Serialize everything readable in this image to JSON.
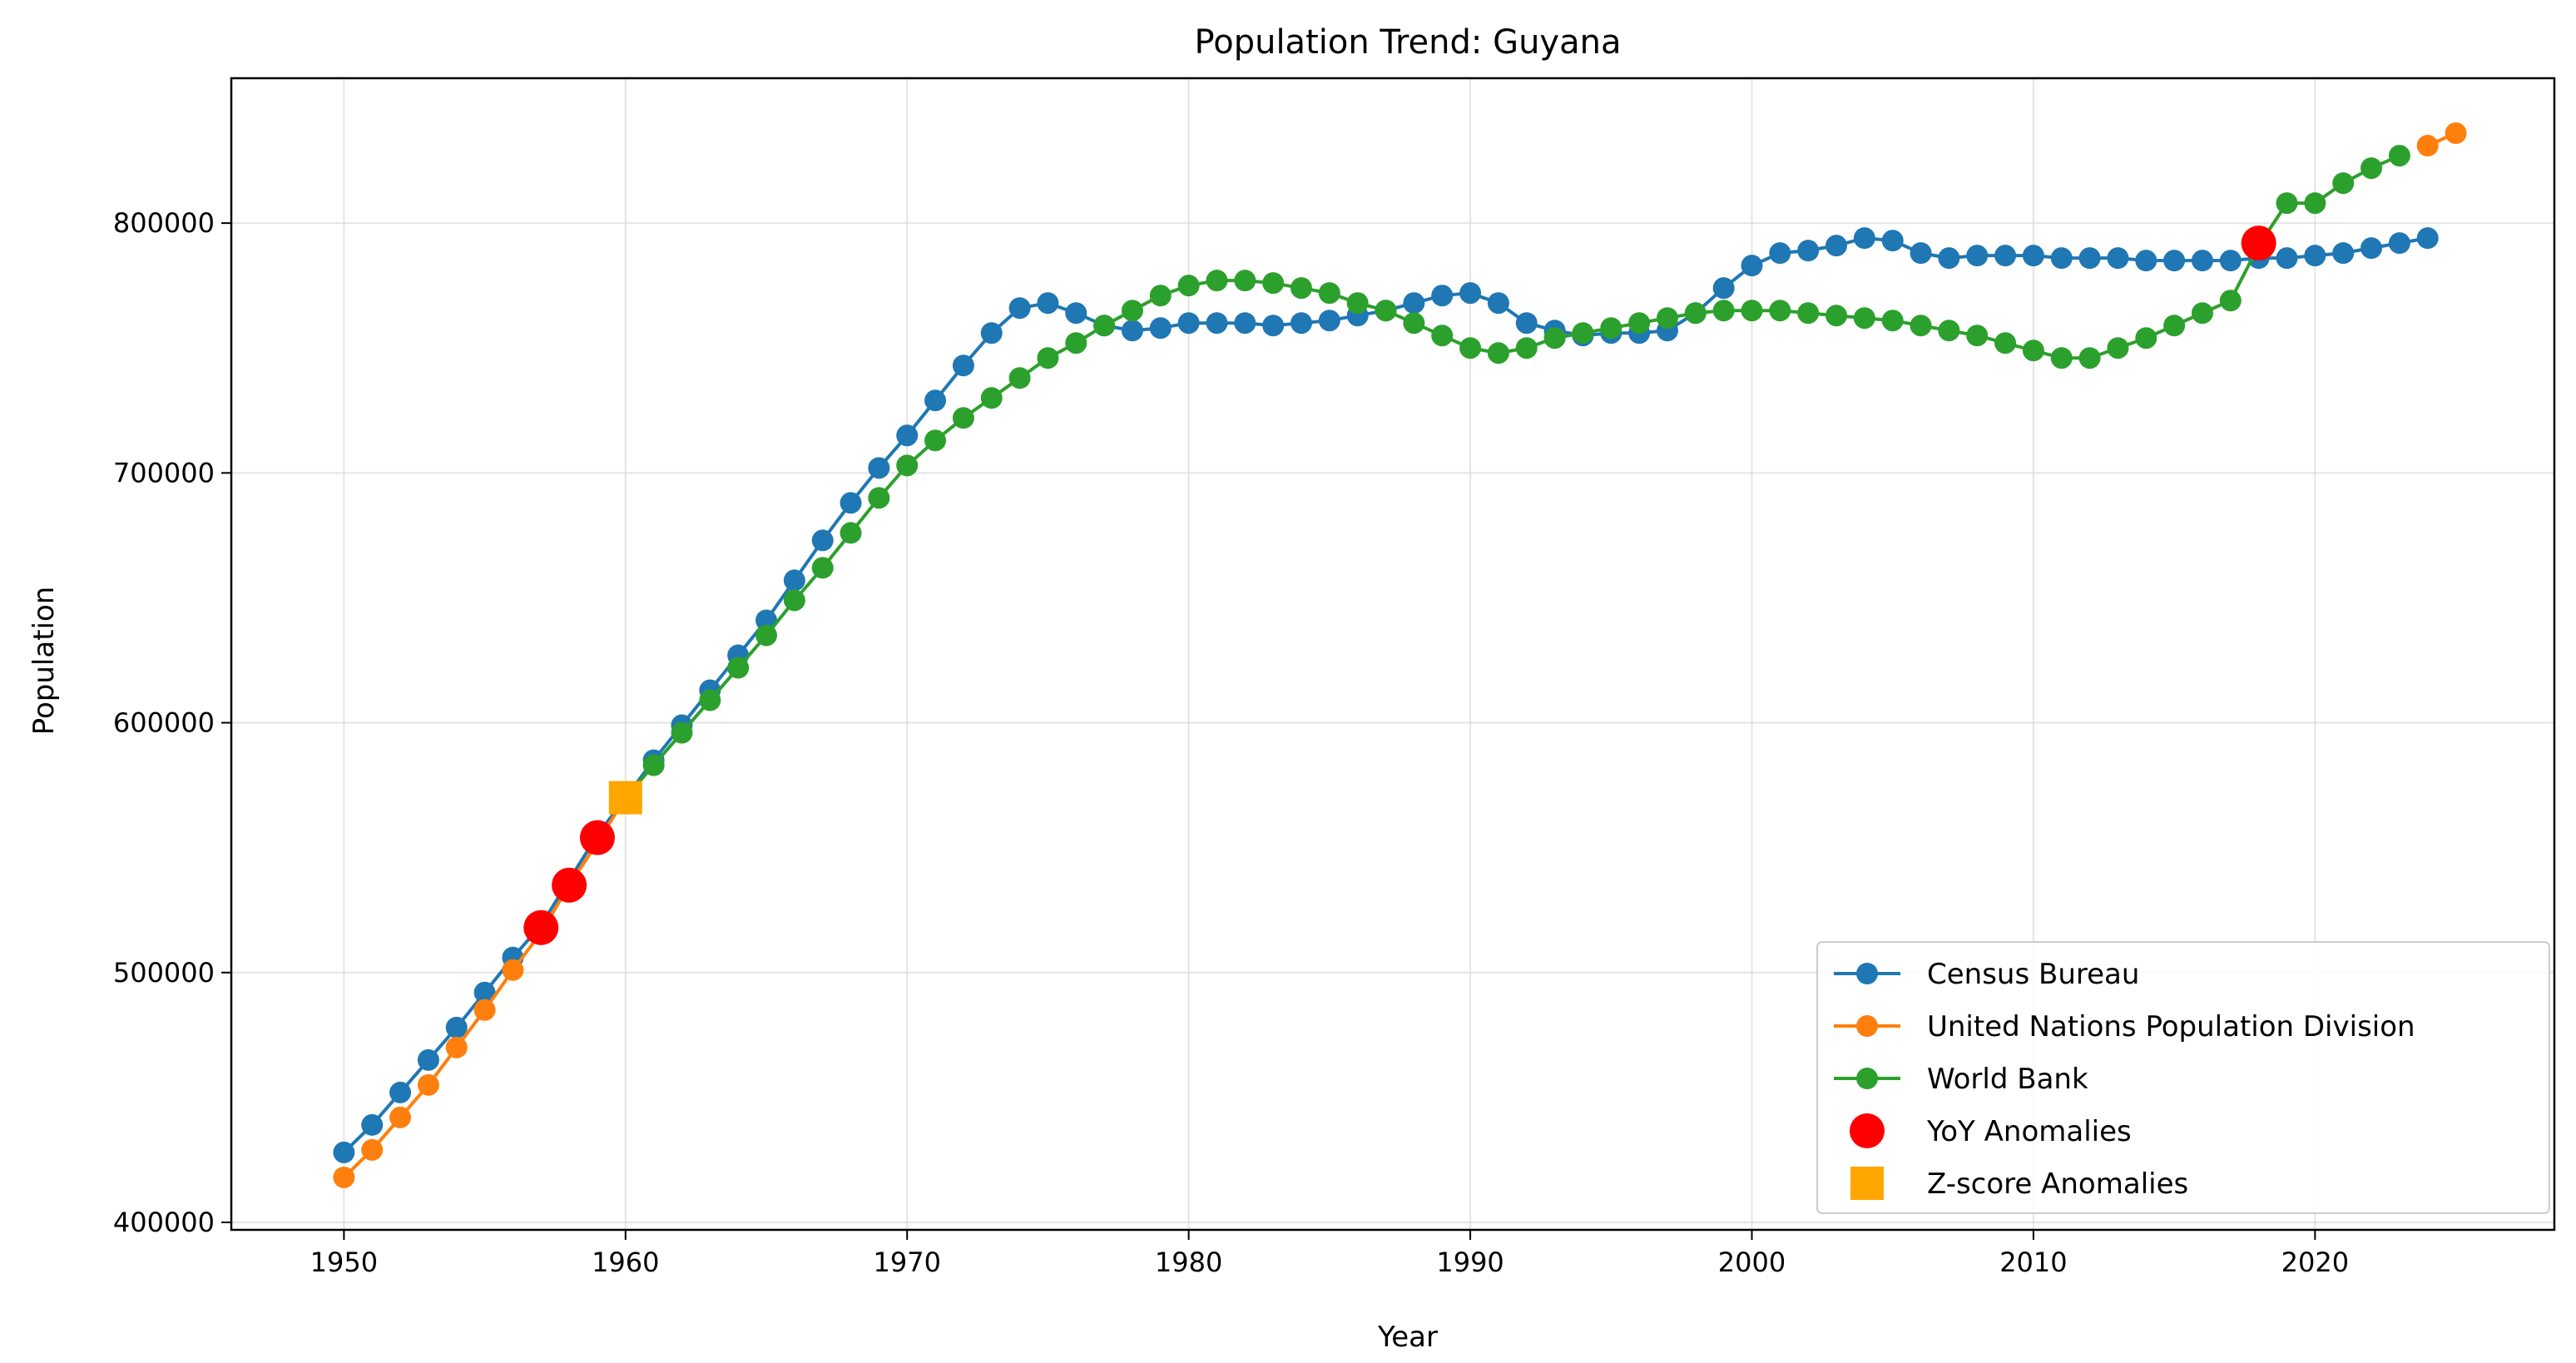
{
  "chart_data": {
    "type": "line",
    "title": "Population Trend: Guyana",
    "xlabel": "Year",
    "ylabel": "Population",
    "xlim": [
      1946,
      2028.5
    ],
    "ylim": [
      397000,
      858000
    ],
    "xticks": [
      1950,
      1960,
      1970,
      1980,
      1990,
      2000,
      2010,
      2020
    ],
    "yticks": [
      400000,
      500000,
      600000,
      700000,
      800000
    ],
    "grid": true,
    "legend_position": "lower right",
    "series": [
      {
        "name": "Census Bureau",
        "color": "#1f77b4",
        "x": [
          1950,
          1951,
          1952,
          1953,
          1954,
          1955,
          1956,
          1957,
          1958,
          1959,
          1960,
          1961,
          1962,
          1963,
          1964,
          1965,
          1966,
          1967,
          1968,
          1969,
          1970,
          1971,
          1972,
          1973,
          1974,
          1975,
          1976,
          1977,
          1978,
          1979,
          1980,
          1981,
          1982,
          1983,
          1984,
          1985,
          1986,
          1987,
          1988,
          1989,
          1990,
          1991,
          1992,
          1993,
          1994,
          1995,
          1996,
          1997,
          1998,
          1999,
          2000,
          2001,
          2002,
          2003,
          2004,
          2005,
          2006,
          2007,
          2008,
          2009,
          2010,
          2011,
          2012,
          2013,
          2014,
          2015,
          2016,
          2017,
          2018,
          2019,
          2020,
          2021,
          2022,
          2023,
          2024
        ],
        "y": [
          428000,
          439000,
          452000,
          465000,
          478000,
          492000,
          506000,
          519000,
          537000,
          555000,
          570000,
          585000,
          599000,
          613000,
          627000,
          641000,
          657000,
          673000,
          688000,
          702000,
          715000,
          729000,
          743000,
          756000,
          766000,
          768000,
          764000,
          759000,
          757000,
          758000,
          760000,
          760000,
          760000,
          759000,
          760000,
          761000,
          763000,
          765000,
          768000,
          771000,
          772000,
          768000,
          760000,
          757000,
          755000,
          756000,
          756000,
          757000,
          764000,
          774000,
          783000,
          788000,
          789000,
          791000,
          794000,
          793000,
          788000,
          786000,
          787000,
          787000,
          787000,
          786000,
          786000,
          786000,
          785000,
          785000,
          785000,
          785000,
          786000,
          786000,
          787000,
          788000,
          790000,
          792000,
          794000
        ]
      },
      {
        "name": "United Nations Population Division",
        "color": "#ff7f0e",
        "x": [
          1950,
          1951,
          1952,
          1953,
          1954,
          1955,
          1956,
          1957,
          1958,
          1959,
          1960,
          2024,
          2025
        ],
        "y": [
          418000,
          429000,
          442000,
          455000,
          470000,
          485000,
          501000,
          516000,
          535000,
          552000,
          570000,
          831000,
          836000
        ]
      },
      {
        "name": "World Bank",
        "color": "#2ca02c",
        "x": [
          1960,
          1961,
          1962,
          1963,
          1964,
          1965,
          1966,
          1967,
          1968,
          1969,
          1970,
          1971,
          1972,
          1973,
          1974,
          1975,
          1976,
          1977,
          1978,
          1979,
          1980,
          1981,
          1982,
          1983,
          1984,
          1985,
          1986,
          1987,
          1988,
          1989,
          1990,
          1991,
          1992,
          1993,
          1994,
          1995,
          1996,
          1997,
          1998,
          1999,
          2000,
          2001,
          2002,
          2003,
          2004,
          2005,
          2006,
          2007,
          2008,
          2009,
          2010,
          2011,
          2012,
          2013,
          2014,
          2015,
          2016,
          2017,
          2018,
          2019,
          2020,
          2021,
          2022,
          2023
        ],
        "y": [
          570000,
          583000,
          596000,
          609000,
          622000,
          635000,
          649000,
          662000,
          676000,
          690000,
          703000,
          713000,
          722000,
          730000,
          738000,
          746000,
          752000,
          759000,
          765000,
          771000,
          775000,
          777000,
          777000,
          776000,
          774000,
          772000,
          768000,
          765000,
          760000,
          755000,
          750000,
          748000,
          750000,
          754000,
          756000,
          758000,
          760000,
          762000,
          764000,
          765000,
          765000,
          765000,
          764000,
          763000,
          762000,
          761000,
          759000,
          757000,
          755000,
          752000,
          749000,
          746000,
          746000,
          750000,
          754000,
          759000,
          764000,
          769000,
          791000,
          808000,
          808000,
          816000,
          822000,
          827000
        ]
      }
    ],
    "yoy_anomalies": {
      "name": "YoY Anomalies",
      "color": "#ff0000",
      "x": [
        1957,
        1958,
        1959,
        2018
      ],
      "y": [
        518000,
        535000,
        554000,
        792000
      ]
    },
    "zscore_anomalies": {
      "name": "Z-score Anomalies",
      "color": "#ffa500",
      "x": [
        1960
      ],
      "y": [
        570000
      ]
    }
  }
}
